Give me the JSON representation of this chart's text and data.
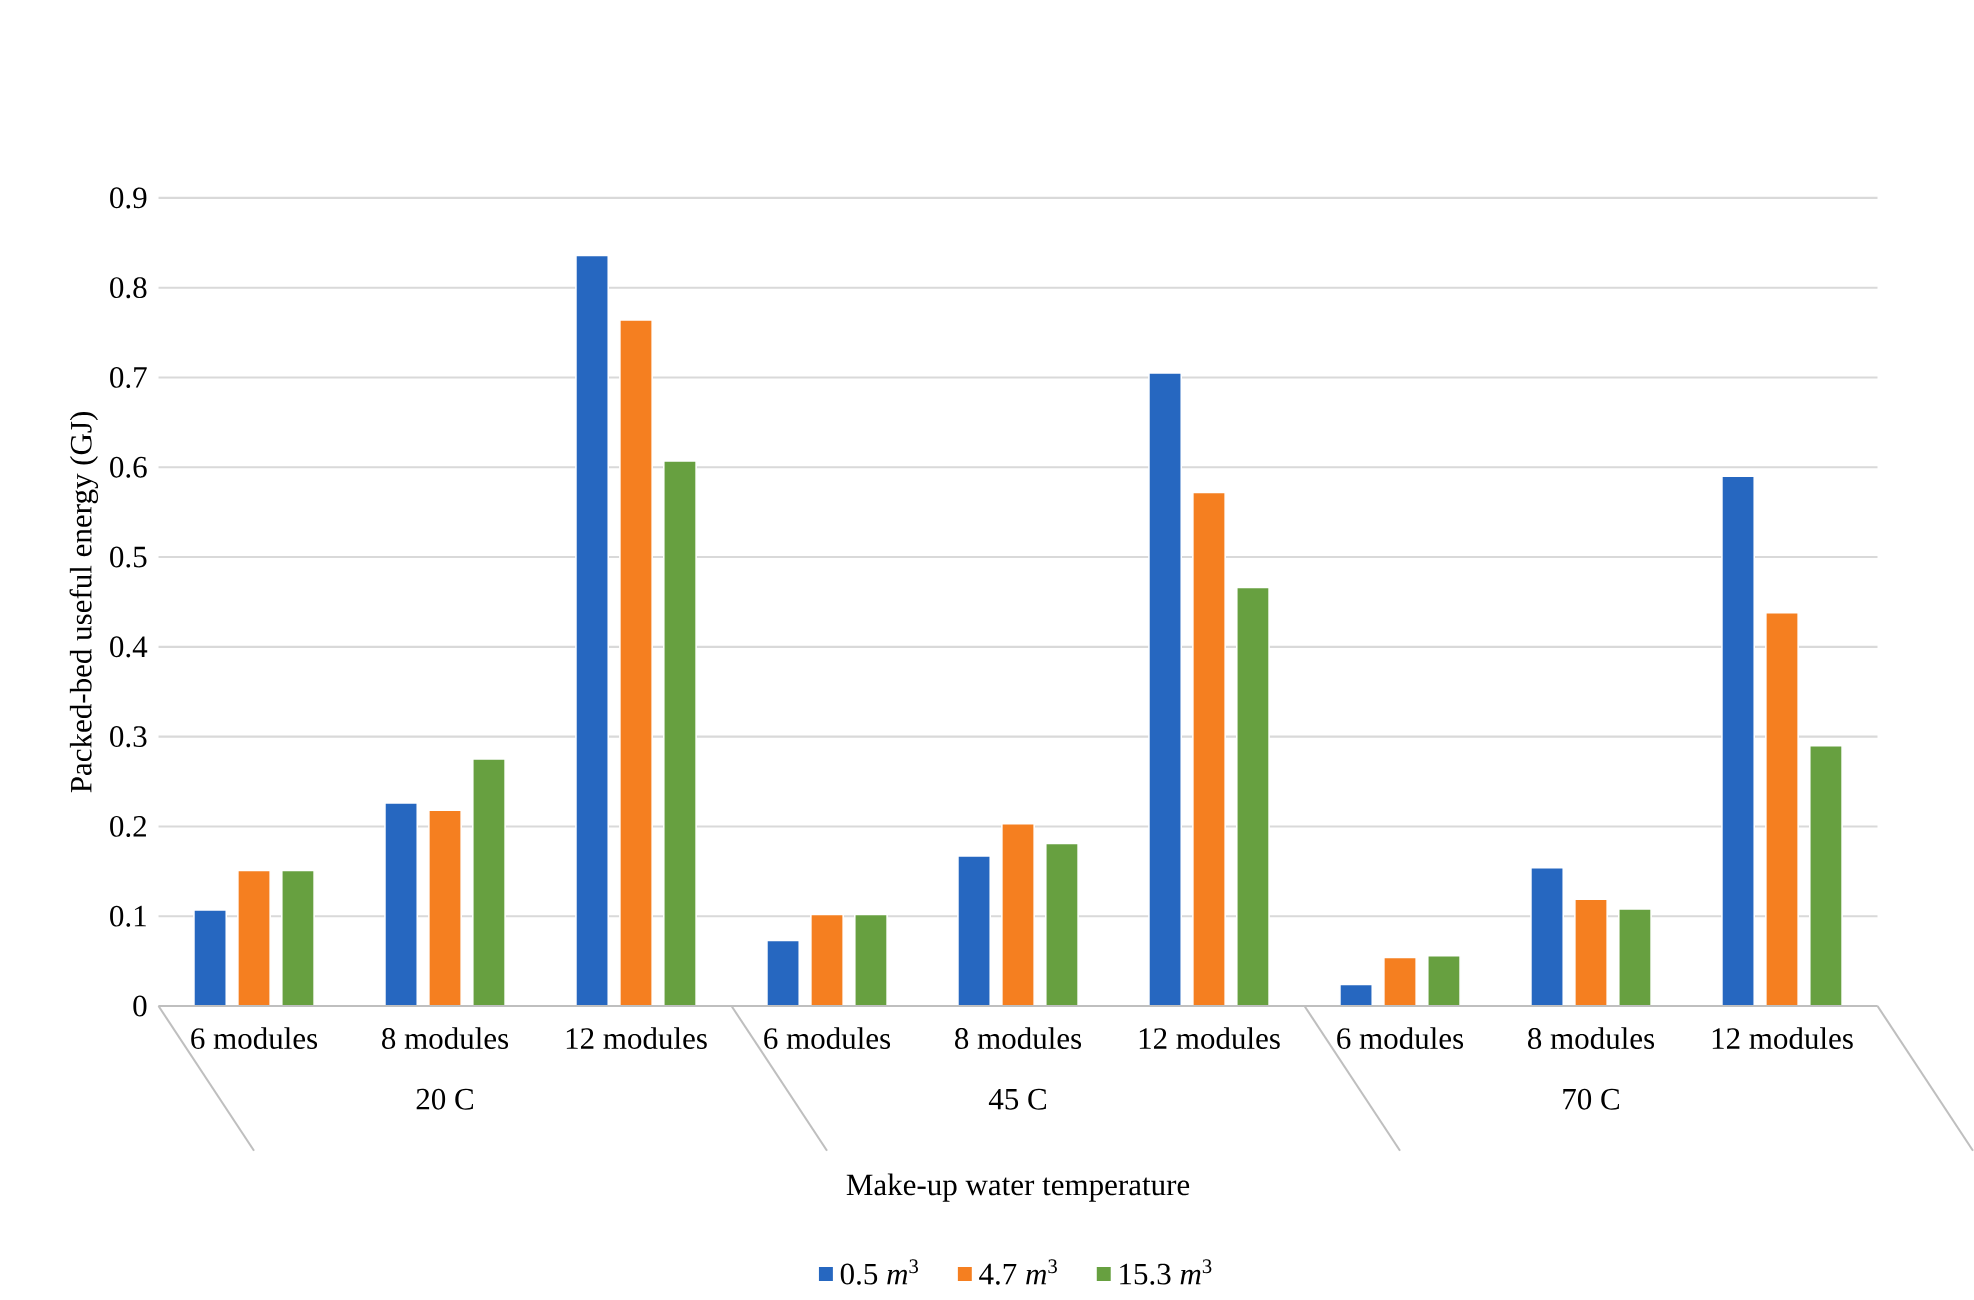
{
  "chart_data": {
    "type": "bar",
    "xlabel": "Make-up water temperature",
    "ylabel": "Packed-bed useful energy  (GJ)",
    "categories": [
      "6 modules",
      "8 modules",
      "12 modules",
      "6 modules",
      "8 modules",
      "12 modules",
      "6 modules",
      "8 modules",
      "12 modules"
    ],
    "annotations": [
      "20 C",
      "45 C",
      "70 C"
    ],
    "series": [
      {
        "name": "0.5 *m*$^{3}$",
        "color": "#2667c0",
        "values": [
          0.107,
          0.226,
          0.836,
          0.073,
          0.167,
          0.705,
          0.024,
          0.154,
          0.59
        ]
      },
      {
        "name": "4.7 *m*$^{3}$",
        "color": "#f57f20",
        "values": [
          0.151,
          0.218,
          0.764,
          0.102,
          0.203,
          0.572,
          0.054,
          0.119,
          0.438
        ]
      },
      {
        "name": "15.3 *m*$^{3}$",
        "color": "#67a040",
        "values": [
          0.151,
          0.275,
          0.607,
          0.102,
          0.181,
          0.466,
          0.056,
          0.108,
          0.29
        ]
      }
    ],
    "ylim": [
      0,
      0.9
    ],
    "yticks": [
      0,
      0.1,
      0.2,
      0.3,
      0.4,
      0.5,
      0.6,
      0.7,
      0.8,
      0.9
    ],
    "grid": "y",
    "legend": "bottom"
  }
}
